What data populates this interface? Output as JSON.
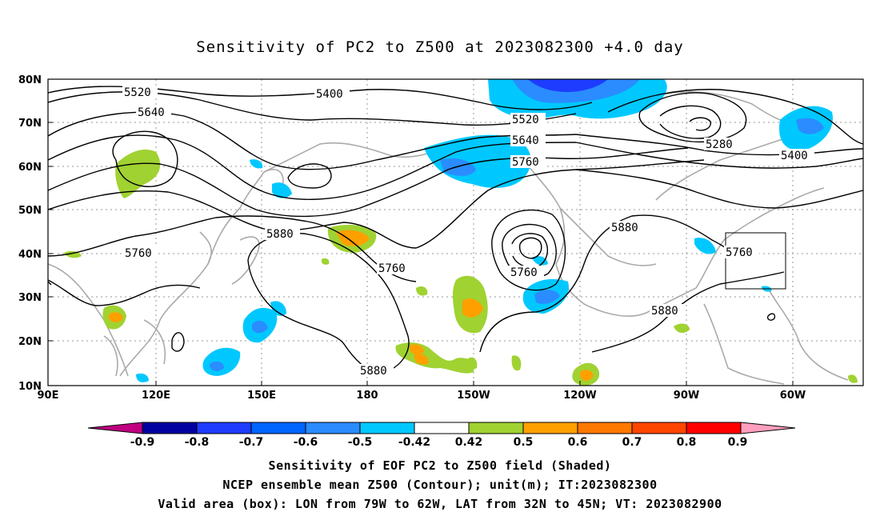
{
  "title": "Sensitivity of PC2 to Z500 at 2023082300 +4.0 day",
  "axes": {
    "lat_ticks": [
      "80N",
      "70N",
      "60N",
      "50N",
      "40N",
      "30N",
      "20N",
      "10N"
    ],
    "lon_ticks": [
      "90E",
      "120E",
      "150E",
      "180",
      "150W",
      "120W",
      "90W",
      "60W"
    ]
  },
  "contour_labels": [
    {
      "text": "5520"
    },
    {
      "text": "5400"
    },
    {
      "text": "5640"
    },
    {
      "text": "5520"
    },
    {
      "text": "5640"
    },
    {
      "text": "5760"
    },
    {
      "text": "5280"
    },
    {
      "text": "5400"
    },
    {
      "text": "5880"
    },
    {
      "text": "5760"
    },
    {
      "text": "5760"
    },
    {
      "text": "5760"
    },
    {
      "text": "5880"
    },
    {
      "text": "5760"
    },
    {
      "text": "5880"
    },
    {
      "text": "5880"
    }
  ],
  "colorbar": {
    "labels": [
      "-0.9",
      "-0.8",
      "-0.7",
      "-0.6",
      "-0.5",
      "-0.42",
      "0.42",
      "0.5",
      "0.6",
      "0.7",
      "0.8",
      "0.9"
    ],
    "colors": [
      "#0000a0",
      "#1e3cff",
      "#0064ff",
      "#2a8cff",
      "#00c8ff",
      "#ffffff",
      "#a0d232",
      "#ffa000",
      "#ff7800",
      "#ff4600",
      "#ff0000"
    ],
    "under_color": "#c0007f",
    "over_color": "#ff9fbf"
  },
  "valid_area": {
    "lon": "79W to 62W",
    "lat": "32N to 45N"
  },
  "captions": {
    "line1": "Sensitivity of EOF PC2 to Z500 field (Shaded)",
    "line2": "NCEP ensemble mean Z500 (Contour); unit(m); IT:2023082300",
    "line3": "Valid area (box): LON from 79W to 62W, LAT from 32N to 45N; VT: 2023082900"
  }
}
